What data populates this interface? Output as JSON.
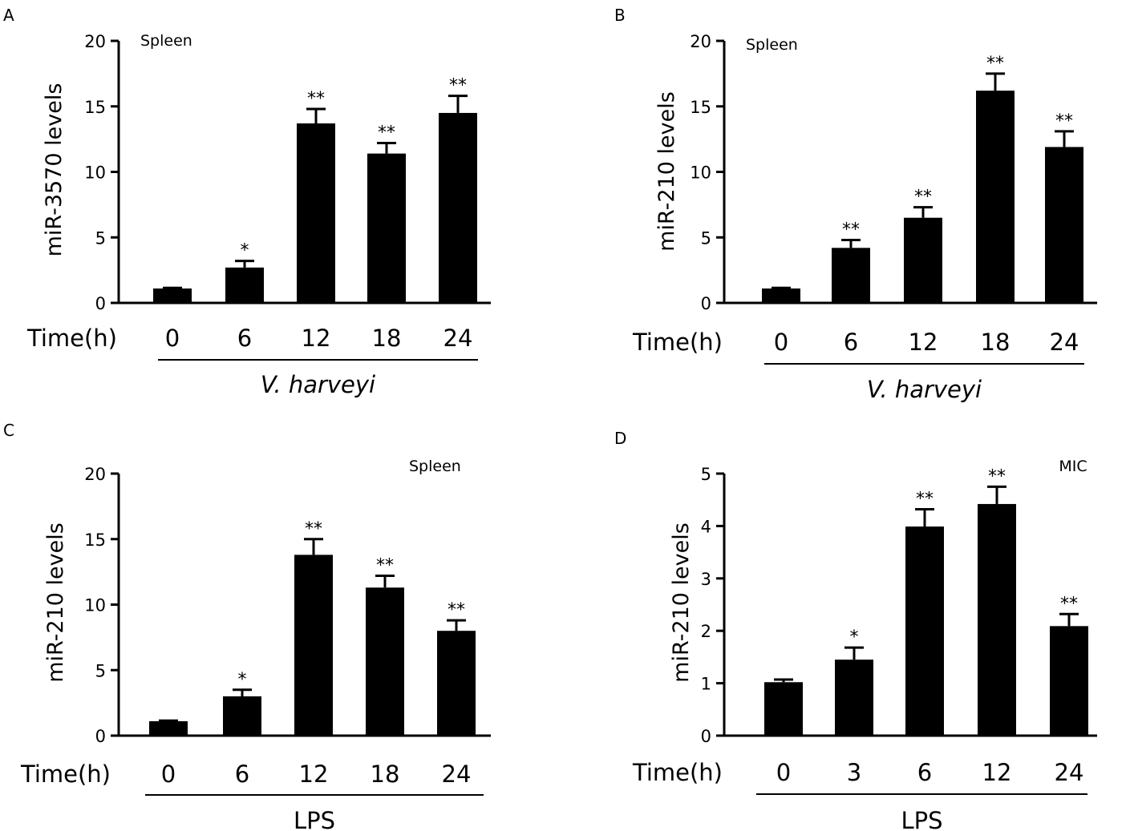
{
  "chart_data": [
    {
      "type": "bar",
      "panel": "A",
      "annotation": "Spleen",
      "ylabel": "miR-3570  levels",
      "ylim": [
        0,
        20
      ],
      "yticks": [
        "0",
        "5",
        "10",
        "15",
        "20"
      ],
      "time_label": "Time(h)",
      "treatment": "V. harveyi",
      "treatment_italic": true,
      "categories": [
        "0",
        "6",
        "12",
        "18",
        "24"
      ],
      "values": [
        1.1,
        2.7,
        13.7,
        11.4,
        14.5
      ],
      "errors": [
        0.05,
        0.5,
        1.1,
        0.8,
        1.3
      ],
      "significance": [
        "",
        "*",
        "**",
        "**",
        "**"
      ]
    },
    {
      "type": "bar",
      "panel": "B",
      "annotation": "Spleen",
      "ylabel": "miR-210  levels",
      "ylim": [
        0,
        20
      ],
      "yticks": [
        "0",
        "5",
        "10",
        "15",
        "20"
      ],
      "time_label": "Time(h)",
      "treatment": "V. harveyi",
      "treatment_italic": true,
      "categories": [
        "0",
        "6",
        "12",
        "18",
        "24"
      ],
      "values": [
        1.1,
        4.2,
        6.5,
        16.2,
        11.9
      ],
      "errors": [
        0.05,
        0.6,
        0.8,
        1.3,
        1.2
      ],
      "significance": [
        "",
        "**",
        "**",
        "**",
        "**"
      ]
    },
    {
      "type": "bar",
      "panel": "C",
      "annotation": "Spleen",
      "ylabel": "miR-210  levels",
      "ylim": [
        0,
        20
      ],
      "yticks": [
        "0",
        "5",
        "10",
        "15",
        "20"
      ],
      "time_label": "Time(h)",
      "treatment": "LPS",
      "treatment_italic": false,
      "categories": [
        "0",
        "6",
        "12",
        "18",
        "24"
      ],
      "values": [
        1.1,
        3.0,
        13.8,
        11.3,
        8.0
      ],
      "errors": [
        0.05,
        0.5,
        1.2,
        0.9,
        0.8
      ],
      "significance": [
        "",
        "*",
        "**",
        "**",
        "**"
      ]
    },
    {
      "type": "bar",
      "panel": "D",
      "annotation": "MIC",
      "ylabel": "miR-210  levels",
      "ylim": [
        0,
        5
      ],
      "yticks": [
        "0",
        "1",
        "2",
        "3",
        "4",
        "5"
      ],
      "time_label": "Time(h)",
      "treatment": "LPS",
      "treatment_italic": false,
      "categories": [
        "0",
        "3",
        "6",
        "12",
        "24"
      ],
      "values": [
        1.02,
        1.45,
        3.99,
        4.42,
        2.09
      ],
      "errors": [
        0.05,
        0.23,
        0.33,
        0.33,
        0.23
      ],
      "significance": [
        "",
        "*",
        "**",
        "**",
        "**"
      ]
    }
  ]
}
